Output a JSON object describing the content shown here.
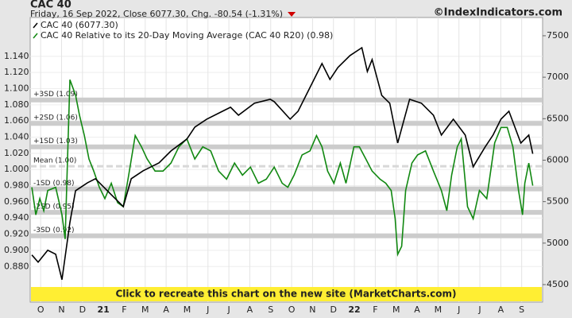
{
  "chart_data": {
    "type": "line",
    "title": "CAC 40",
    "subtitle": "Friday, 16 Sep 2022, Close 6077.30, Chg. -80.54 (-1.31%)",
    "source": "©IndexIndicators.com",
    "banner": "Click to recreate this chart on the new site (MarketCharts.com)",
    "legend": "upper left",
    "grid": true,
    "xlim": [
      0,
      24.5
    ],
    "xticks": [
      {
        "value": 0.5,
        "label": "O"
      },
      {
        "value": 1.5,
        "label": "N"
      },
      {
        "value": 2.5,
        "label": "D"
      },
      {
        "value": 3.5,
        "label": "21"
      },
      {
        "value": 4.5,
        "label": "F"
      },
      {
        "value": 5.5,
        "label": "M"
      },
      {
        "value": 6.5,
        "label": "A"
      },
      {
        "value": 7.5,
        "label": "M"
      },
      {
        "value": 8.5,
        "label": "J"
      },
      {
        "value": 9.5,
        "label": "J"
      },
      {
        "value": 10.5,
        "label": "A"
      },
      {
        "value": 11.5,
        "label": "S"
      },
      {
        "value": 12.5,
        "label": "O"
      },
      {
        "value": 13.5,
        "label": "N"
      },
      {
        "value": 14.5,
        "label": "D"
      },
      {
        "value": 15.5,
        "label": "22"
      },
      {
        "value": 16.5,
        "label": "F"
      },
      {
        "value": 17.5,
        "label": "M"
      },
      {
        "value": 18.5,
        "label": "A"
      },
      {
        "value": 19.5,
        "label": "M"
      },
      {
        "value": 20.5,
        "label": "J"
      },
      {
        "value": 21.5,
        "label": "J"
      },
      {
        "value": 22.5,
        "label": "A"
      },
      {
        "value": 23.5,
        "label": "S"
      }
    ],
    "ylim": [
      0.836,
      1.188
    ],
    "yticks": [
      {
        "value": 0.88,
        "label": "0.880"
      },
      {
        "value": 0.9,
        "label": "0.900"
      },
      {
        "value": 0.92,
        "label": "0.920"
      },
      {
        "value": 0.94,
        "label": "0.940"
      },
      {
        "value": 0.96,
        "label": "0.960"
      },
      {
        "value": 0.98,
        "label": "0.980"
      },
      {
        "value": 1.0,
        "label": "1.000"
      },
      {
        "value": 1.02,
        "label": "1.020"
      },
      {
        "value": 1.04,
        "label": "1.040"
      },
      {
        "value": 1.06,
        "label": "1.060"
      },
      {
        "value": 1.08,
        "label": "1.080"
      },
      {
        "value": 1.1,
        "label": "1.100"
      },
      {
        "value": 1.12,
        "label": "1.120"
      },
      {
        "value": 1.14,
        "label": "1.140"
      }
    ],
    "y2lim": [
      4289,
      7720
    ],
    "y2ticks": [
      4500,
      5000,
      5500,
      6000,
      6500,
      7000,
      7500
    ],
    "bands": [
      {
        "label": "+3SD (1.09)",
        "value": 1.086
      },
      {
        "label": "+2SD (1.06)",
        "value": 1.057
      },
      {
        "label": "+1SD (1.03)",
        "value": 1.028
      },
      {
        "label": "Mean (1.00)",
        "value": 1.004
      },
      {
        "label": "-1SD (0.98)",
        "value": 0.976
      },
      {
        "label": "-2SD (0.95)",
        "value": 0.947
      },
      {
        "label": "-3SD (0.92)",
        "value": 0.918
      }
    ],
    "series": [
      {
        "name": "CAC 40 Relative to its 20-Day Moving Average (CAC 40 R20) (0.98)",
        "color": "#118811",
        "axis": "y",
        "x": [
          0.08,
          0.27,
          0.46,
          0.65,
          0.84,
          1.22,
          1.52,
          1.67,
          1.9,
          2.17,
          2.36,
          2.59,
          2.81,
          3.04,
          3.31,
          3.57,
          3.88,
          4.18,
          4.45,
          4.71,
          5.02,
          5.32,
          5.59,
          5.97,
          6.35,
          6.73,
          7.11,
          7.49,
          7.87,
          8.25,
          8.63,
          9.01,
          9.39,
          9.77,
          10.15,
          10.53,
          10.91,
          11.29,
          11.67,
          12.05,
          12.32,
          12.62,
          13.0,
          13.38,
          13.69,
          13.95,
          14.22,
          14.52,
          14.83,
          15.1,
          15.48,
          15.74,
          16.05,
          16.35,
          16.73,
          17.0,
          17.26,
          17.45,
          17.57,
          17.76,
          17.95,
          18.25,
          18.52,
          18.9,
          19.28,
          19.66,
          19.92,
          20.15,
          20.42,
          20.61,
          20.91,
          21.18,
          21.48,
          21.83,
          22.21,
          22.51,
          22.81,
          23.08,
          23.35,
          23.54,
          23.65,
          23.84,
          24.03
        ],
        "values": [
          0.978,
          0.944,
          0.964,
          0.949,
          0.974,
          0.978,
          0.944,
          0.914,
          1.111,
          1.092,
          1.067,
          1.042,
          1.013,
          0.998,
          0.978,
          0.964,
          0.983,
          0.959,
          0.954,
          0.993,
          1.042,
          1.028,
          1.013,
          0.998,
          0.998,
          1.008,
          1.028,
          1.038,
          1.013,
          1.028,
          1.023,
          0.998,
          0.988,
          1.008,
          0.993,
          1.003,
          0.983,
          0.988,
          1.003,
          0.983,
          0.978,
          0.993,
          1.018,
          1.023,
          1.042,
          1.028,
          0.998,
          0.983,
          1.008,
          0.983,
          1.028,
          1.028,
          1.013,
          0.998,
          0.988,
          0.983,
          0.974,
          0.939,
          0.895,
          0.905,
          0.974,
          1.008,
          1.018,
          1.023,
          0.998,
          0.974,
          0.949,
          0.993,
          1.028,
          1.038,
          0.954,
          0.939,
          0.974,
          0.964,
          1.033,
          1.052,
          1.052,
          1.028,
          0.974,
          0.944,
          0.983,
          1.008,
          0.98
        ]
      },
      {
        "name": "CAC 40 (6077.30)",
        "color": "#000000",
        "axis": "y2",
        "x": [
          0.08,
          0.38,
          0.84,
          1.22,
          1.52,
          1.9,
          2.17,
          2.74,
          3.12,
          3.88,
          4.45,
          4.83,
          5.4,
          6.16,
          6.73,
          7.49,
          7.87,
          8.44,
          9.2,
          9.58,
          9.96,
          10.72,
          11.48,
          11.67,
          12.43,
          12.81,
          13.38,
          13.95,
          14.33,
          14.71,
          15.29,
          15.86,
          16.12,
          16.35,
          16.81,
          17.19,
          17.57,
          18.14,
          18.71,
          19.28,
          19.66,
          20.23,
          20.8,
          21.18,
          21.75,
          22.13,
          22.51,
          22.89,
          23.46,
          23.84,
          24.03
        ],
        "values": [
          4857,
          4770,
          4914,
          4866,
          4559,
          5249,
          5632,
          5728,
          5776,
          5584,
          5440,
          5776,
          5872,
          5968,
          6111,
          6255,
          6398,
          6494,
          6590,
          6638,
          6542,
          6686,
          6734,
          6705,
          6494,
          6590,
          6877,
          7165,
          6973,
          7117,
          7261,
          7356,
          7069,
          7213,
          6782,
          6686,
          6207,
          6734,
          6686,
          6542,
          6303,
          6494,
          6303,
          5920,
          6159,
          6303,
          6494,
          6590,
          6207,
          6303,
          6077.3
        ]
      }
    ]
  }
}
